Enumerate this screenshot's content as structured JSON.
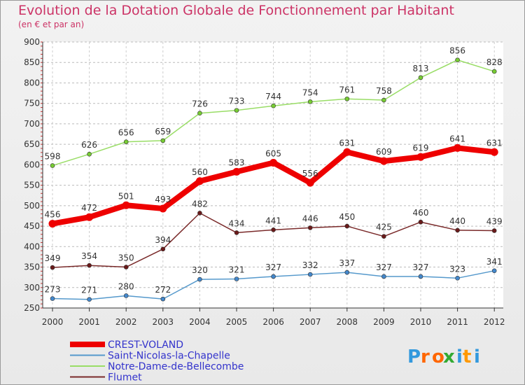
{
  "header": {
    "title": "Evolution de la Dotation Globale de Fonctionnement par Habitant",
    "subtitle": "(en € et par an)"
  },
  "logo": {
    "text": "Proxiti"
  },
  "chart_data": {
    "type": "line",
    "title": "Evolution de la Dotation Globale de Fonctionnement par Habitant",
    "subtitle": "(en € et par an)",
    "xlabel": "",
    "ylabel": "",
    "x": [
      "2000",
      "2001",
      "2002",
      "2003",
      "2004",
      "2005",
      "2006",
      "2007",
      "2008",
      "2009",
      "2010",
      "2011",
      "2012"
    ],
    "ylim": [
      250,
      900
    ],
    "yticks": [
      250,
      300,
      350,
      400,
      450,
      500,
      550,
      600,
      650,
      700,
      750,
      800,
      850,
      900
    ],
    "grid": "horizontal dashed",
    "legend_position": "bottom-left",
    "series": [
      {
        "name": "Notre-Dame-de-Bellecombe",
        "color": "#99dd66",
        "marker": "#77cc33",
        "width": 1.5,
        "values": [
          598,
          626,
          656,
          659,
          726,
          733,
          744,
          754,
          761,
          758,
          813,
          856,
          828
        ]
      },
      {
        "name": "CREST-VOLAND",
        "color": "#ee0000",
        "marker": "#ee0000",
        "width": 8,
        "values": [
          456,
          472,
          501,
          493,
          560,
          583,
          605,
          556,
          631,
          609,
          619,
          641,
          631
        ]
      },
      {
        "name": "Flumet",
        "color": "#7a2a2a",
        "marker": "#6a1a1a",
        "width": 1.5,
        "values": [
          349,
          354,
          350,
          394,
          482,
          434,
          441,
          446,
          450,
          425,
          460,
          440,
          439
        ]
      },
      {
        "name": "Saint-Nicolas-la-Chapelle",
        "color": "#5599cc",
        "marker": "#4488cc",
        "width": 1.5,
        "values": [
          273,
          271,
          280,
          272,
          320,
          321,
          327,
          332,
          337,
          327,
          327,
          323,
          341
        ]
      }
    ],
    "legend": [
      {
        "name": "CREST-VOLAND",
        "color": "#ee0000"
      },
      {
        "name": "Saint-Nicolas-la-Chapelle",
        "color": "#5599cc"
      },
      {
        "name": "Notre-Dame-de-Bellecombe",
        "color": "#99dd66"
      },
      {
        "name": "Flumet",
        "color": "#7a2a2a"
      }
    ]
  }
}
